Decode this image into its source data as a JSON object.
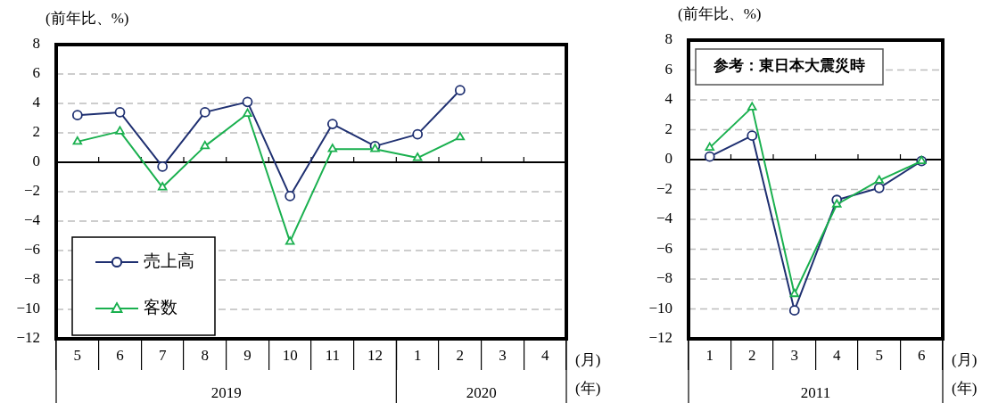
{
  "chart_data": [
    {
      "type": "line",
      "ylabel": "(前年比、%)",
      "xlabel": "(月)",
      "categories": [
        "5",
        "6",
        "7",
        "8",
        "9",
        "10",
        "11",
        "12",
        "1",
        "2",
        "3",
        "4"
      ],
      "series": [
        {
          "name": "売上高",
          "color": "#1f3071",
          "marker": "circle",
          "values": [
            3.2,
            3.4,
            -0.3,
            3.4,
            4.1,
            -2.3,
            2.6,
            1.1,
            1.9,
            4.9,
            null,
            null
          ]
        },
        {
          "name": "客数",
          "color": "#1ab04f",
          "marker": "triangle",
          "values": [
            1.4,
            2.1,
            -1.7,
            1.1,
            3.3,
            -5.4,
            0.9,
            0.9,
            0.3,
            1.7,
            null,
            null
          ]
        }
      ],
      "ylim": [
        -12,
        8
      ],
      "yticks": [
        -12,
        -10,
        -8,
        -6,
        -4,
        -2,
        0,
        2,
        4,
        6,
        8
      ],
      "grid": "y",
      "legend": "bottom left",
      "annotations": [
        "2019",
        "2020",
        "(年)"
      ]
    },
    {
      "type": "line",
      "title": "参考：東日本大震災時",
      "ylabel": "(前年比、%)",
      "xlabel": "(月)",
      "categories": [
        "1",
        "2",
        "3",
        "4",
        "5",
        "6"
      ],
      "series": [
        {
          "color": "#1f3071",
          "marker": "circle",
          "values": [
            0.2,
            1.6,
            -10.1,
            -2.7,
            -1.9,
            -0.1
          ]
        },
        {
          "color": "#1ab04f",
          "marker": "triangle",
          "values": [
            0.8,
            3.5,
            -9.0,
            -3.0,
            -1.4,
            -0.1
          ]
        }
      ],
      "ylim": [
        -12,
        8
      ],
      "yticks": [
        -12,
        -10,
        -8,
        -6,
        -4,
        -2,
        0,
        2,
        4,
        6,
        8
      ],
      "grid": "y",
      "annotations": [
        "2011",
        "(年)"
      ]
    }
  ]
}
